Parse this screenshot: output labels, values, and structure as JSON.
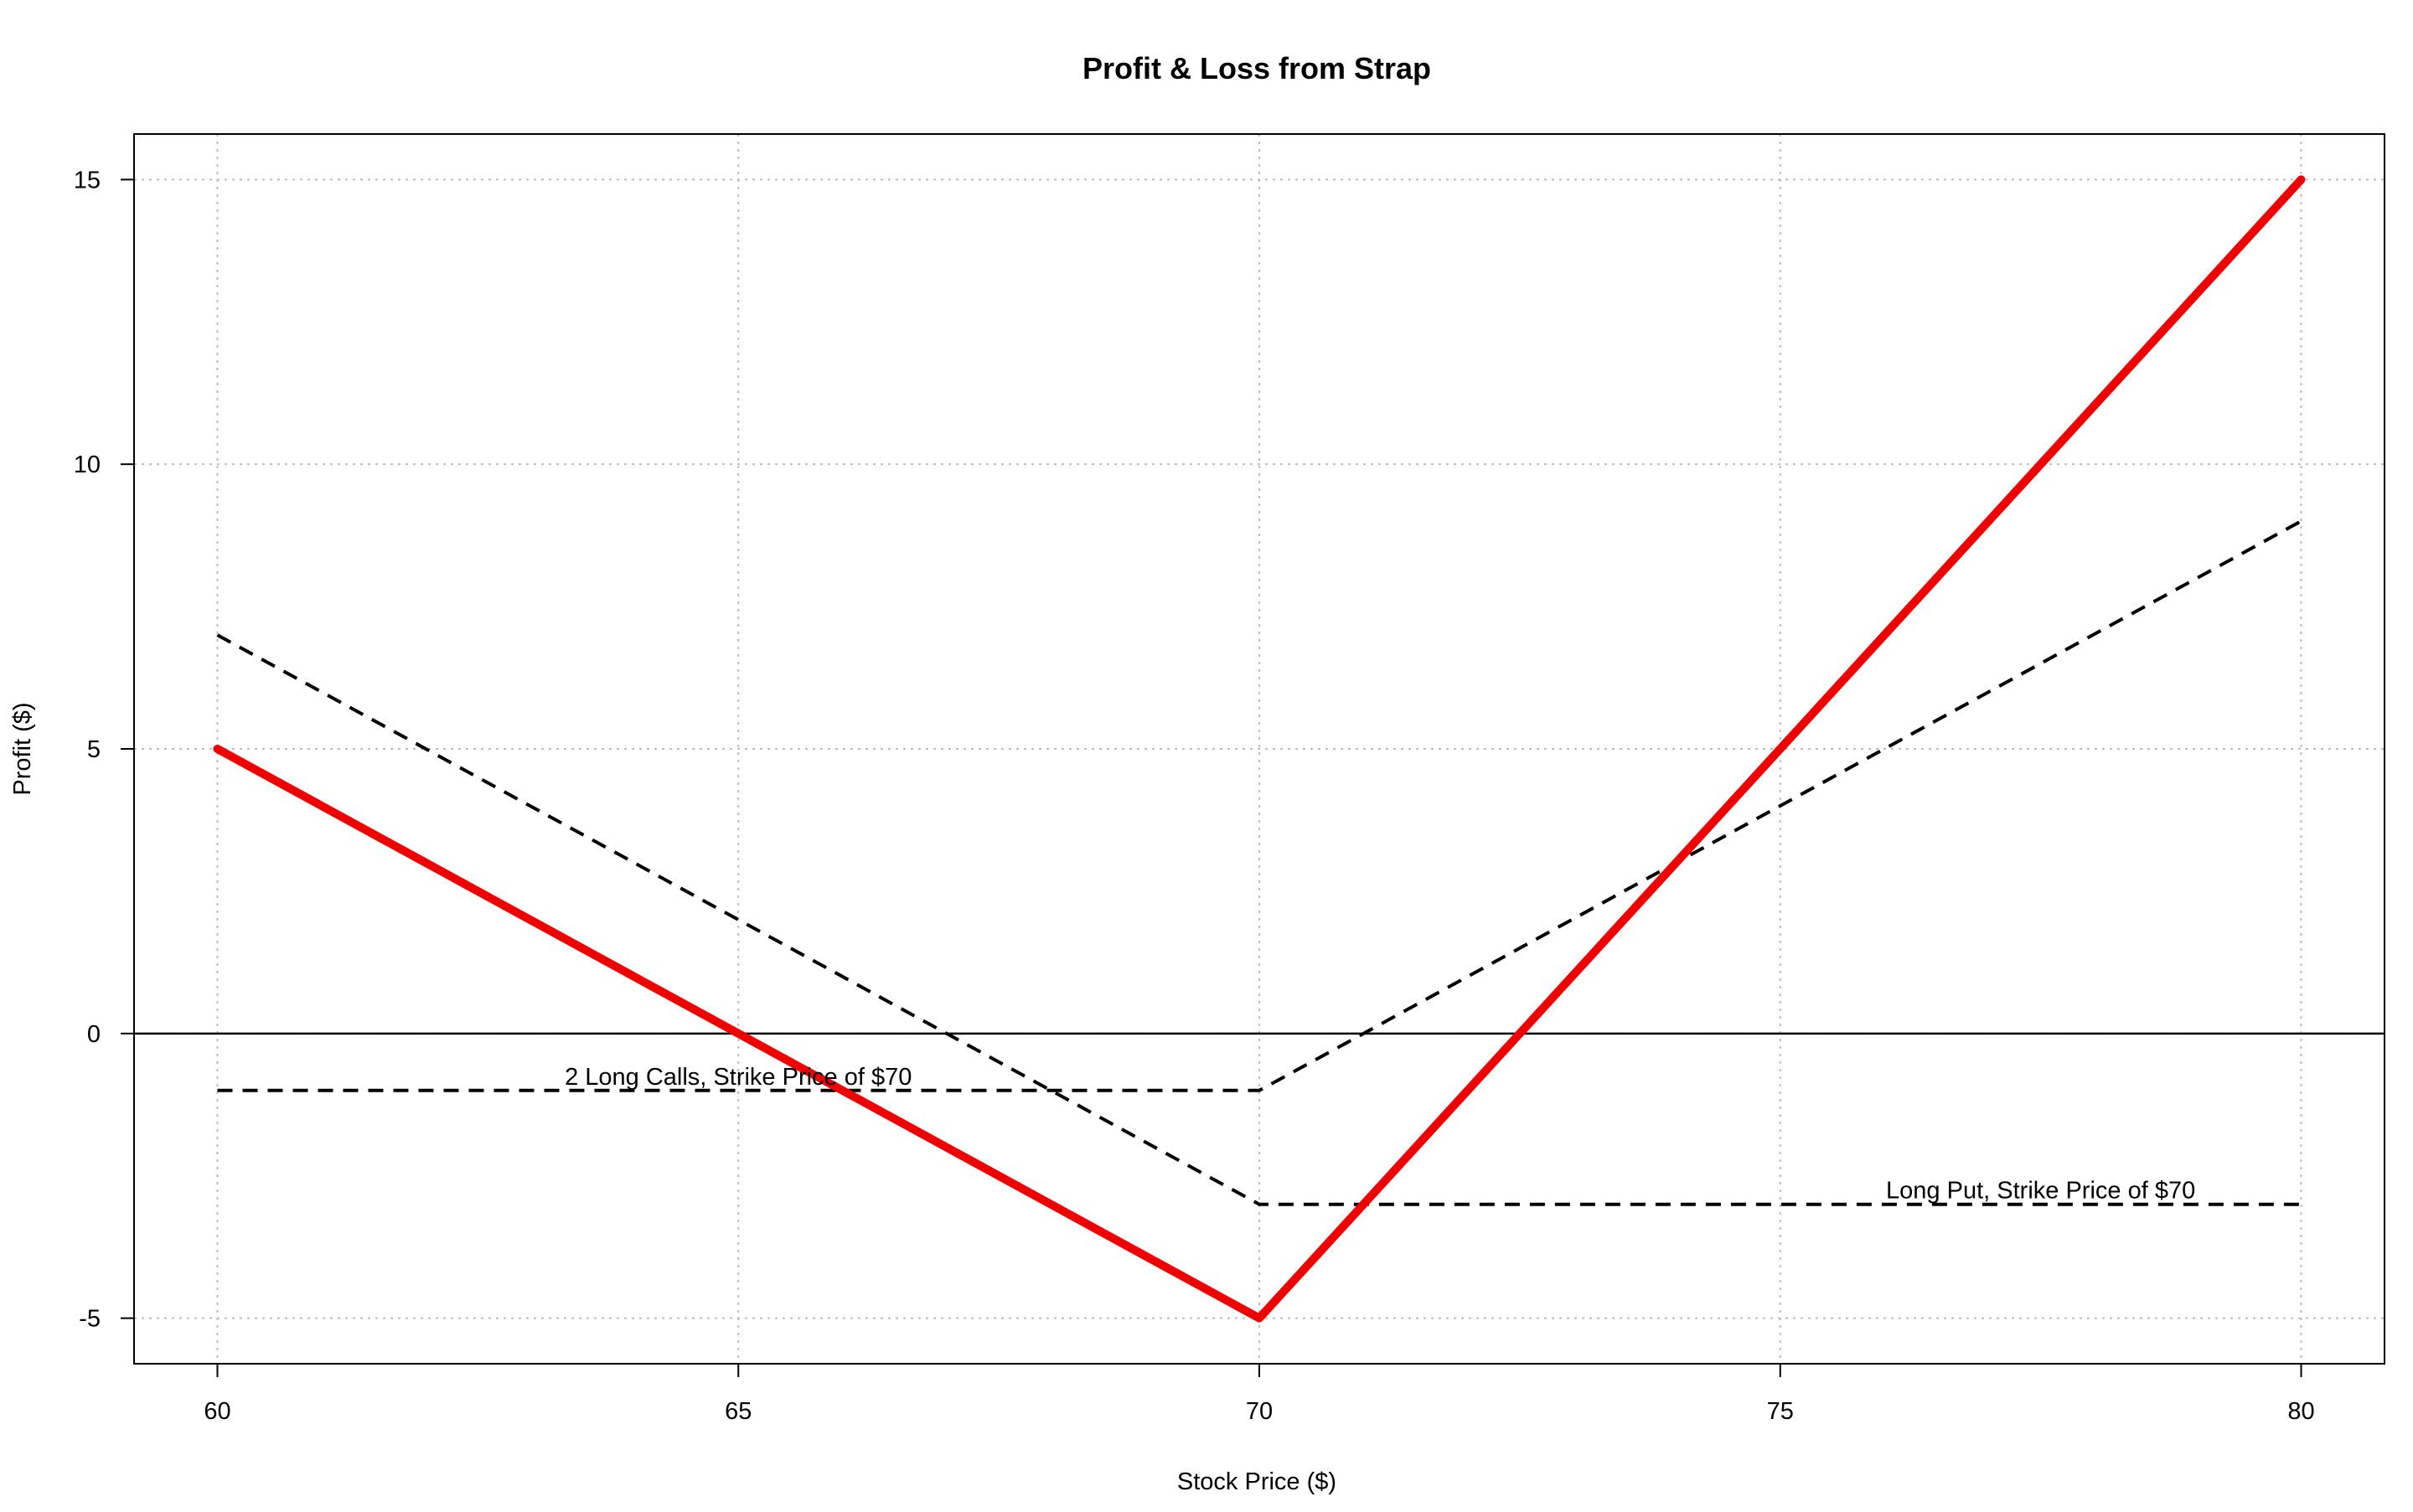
{
  "chart_data": {
    "type": "line",
    "title": "Profit & Loss from Strap",
    "xlabel": "Stock Price ($)",
    "ylabel": "Profit ($)",
    "xlim": [
      59.2,
      80.8
    ],
    "ylim": [
      -5.8,
      15.8
    ],
    "x_ticks": [
      60,
      65,
      70,
      75,
      80
    ],
    "y_ticks": [
      -5,
      0,
      5,
      10,
      15
    ],
    "grid": true,
    "zero_line": true,
    "series": [
      {
        "id": "strap",
        "x": [
          60,
          70,
          80
        ],
        "y": [
          5,
          -5,
          15
        ],
        "color": "#ee0000",
        "style": "solid"
      },
      {
        "id": "long-calls",
        "x": [
          60,
          70,
          80
        ],
        "y": [
          -1,
          -1,
          9
        ],
        "color": "#000000",
        "style": "dashed"
      },
      {
        "id": "long-put",
        "x": [
          60,
          70,
          80
        ],
        "y": [
          7,
          -3,
          -3
        ],
        "color": "#000000",
        "style": "dashed"
      }
    ],
    "annotations": [
      {
        "text": "2 Long Calls, Strike Price of $70",
        "x": 65,
        "y": -0.75
      },
      {
        "text": "Long Put, Strike Price of $70",
        "x": 77.5,
        "y": -2.75
      }
    ]
  }
}
